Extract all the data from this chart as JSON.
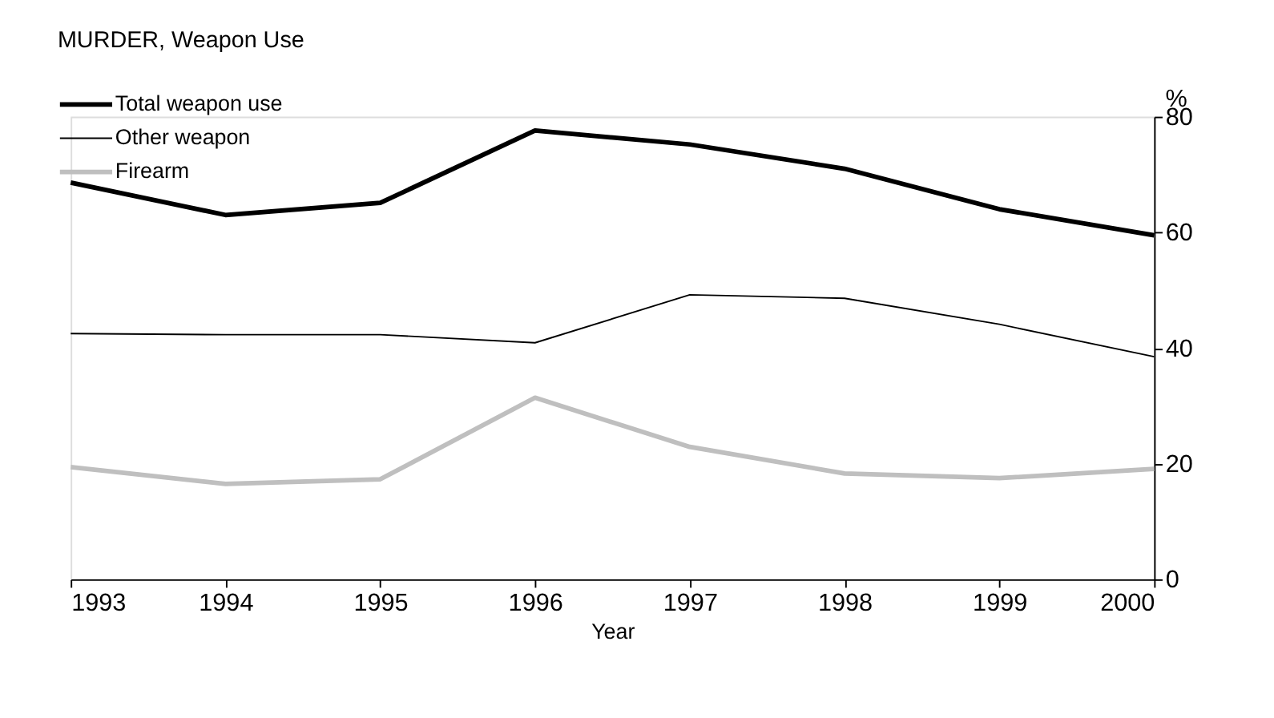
{
  "chart_data": {
    "type": "line",
    "title": "MURDER, Weapon Use",
    "xlabel": "Year",
    "ylabel": "%",
    "x": [
      1993,
      1994,
      1995,
      1996,
      1997,
      1998,
      1999,
      2000
    ],
    "series": [
      {
        "name": "Total weapon use",
        "color": "#000000",
        "values": [
          68.6,
          63,
          65.1,
          77.6,
          75.2,
          71,
          64,
          59.5
        ]
      },
      {
        "name": "Other weapon",
        "color": "#000000",
        "values": [
          42.5,
          42.3,
          42.3,
          40.9,
          49.2,
          48.6,
          44.1,
          38.5
        ]
      },
      {
        "name": "Firearm",
        "color": "#bfbfbf",
        "values": [
          19.4,
          16.5,
          17.3,
          31.4,
          22.9,
          18.3,
          17.5,
          19.1
        ]
      }
    ],
    "xlim": [
      1993,
      2000
    ],
    "xticks": [
      1993,
      1994,
      1995,
      1996,
      1997,
      1998,
      1999,
      2000
    ],
    "ylim": [
      0,
      80
    ],
    "yticks": [
      0,
      20,
      40,
      60,
      80
    ],
    "grid": false,
    "legend": "top left",
    "marker": "none",
    "line_style": "solid"
  }
}
